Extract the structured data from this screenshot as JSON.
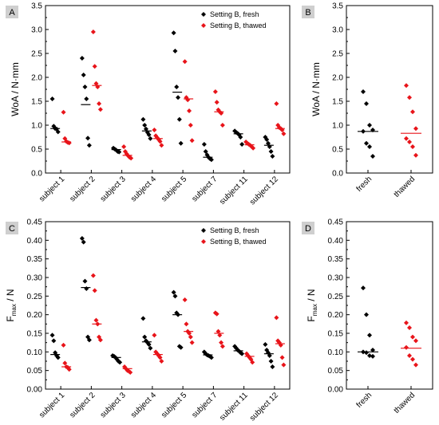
{
  "colors": {
    "fresh": "#000000",
    "thawed": "#e8141a",
    "letter_bg": "#cfcfcf"
  },
  "chart_data": [
    {
      "panel": "A",
      "type": "scatter",
      "ylabel": "WoA / N·mm",
      "ylim": [
        0,
        3.5
      ],
      "yticks": [
        "0.0",
        "0.5",
        "1.0",
        "1.5",
        "2.0",
        "2.5",
        "3.0",
        "3.5"
      ],
      "legend": {
        "placement": "top-right",
        "entries": [
          "Setting B, fresh",
          "Setting B, thawed"
        ]
      },
      "categories": [
        "subject 1",
        "subject 2",
        "subject 3",
        "subject 4",
        "subject 5",
        "subject 7",
        "subject 11",
        "subject 12"
      ],
      "series": [
        {
          "name": "Setting B, fresh",
          "values": [
            [
              1.55,
              0.98,
              0.93,
              0.92,
              0.86
            ],
            [
              2.4,
              2.05,
              1.8,
              1.55,
              0.73,
              0.58
            ],
            [
              0.52,
              0.5,
              0.48,
              0.45,
              0.44
            ],
            [
              1.12,
              1.0,
              0.92,
              0.85,
              0.8,
              0.72
            ],
            [
              2.93,
              2.55,
              1.8,
              1.58,
              1.12,
              0.62
            ],
            [
              0.6,
              0.45,
              0.38,
              0.33,
              0.3,
              0.28
            ],
            [
              0.88,
              0.85,
              0.83,
              0.8,
              0.75,
              0.6
            ],
            [
              0.75,
              0.7,
              0.62,
              0.55,
              0.45,
              0.35
            ]
          ],
          "medians": [
            0.93,
            1.43,
            0.49,
            0.88,
            1.69,
            0.33,
            0.82,
            0.58
          ]
        },
        {
          "name": "Setting B, thawed",
          "values": [
            [
              1.27,
              0.72,
              0.66,
              0.64,
              0.63
            ],
            [
              2.95,
              2.23,
              1.87,
              1.8,
              1.45,
              1.33
            ],
            [
              0.55,
              0.45,
              0.4,
              0.36,
              0.33,
              0.31
            ],
            [
              0.9,
              0.78,
              0.74,
              0.7,
              0.66,
              0.58
            ],
            [
              2.33,
              1.58,
              1.53,
              1.3,
              1.0,
              0.68
            ],
            [
              1.7,
              1.48,
              1.32,
              1.28,
              1.25,
              1.0
            ],
            [
              0.65,
              0.62,
              0.6,
              0.58,
              0.55,
              0.52
            ],
            [
              1.45,
              1.0,
              0.95,
              0.93,
              0.9,
              0.82
            ]
          ],
          "medians": [
            0.65,
            1.83,
            0.37,
            0.72,
            1.55,
            1.28,
            0.59,
            0.93
          ]
        }
      ]
    },
    {
      "panel": "B",
      "type": "scatter",
      "ylabel": "WoA / N·mm",
      "ylim": [
        0,
        3.5
      ],
      "yticks": [
        "0.0",
        "0.5",
        "1.0",
        "1.5",
        "2.0",
        "2.5",
        "3.0",
        "3.5"
      ],
      "categories": [
        "fresh",
        "thawed"
      ],
      "series": [
        {
          "name": "fresh",
          "values": [
            1.7,
            1.45,
            1.0,
            0.9,
            0.87,
            0.62,
            0.55,
            0.35
          ],
          "median": 0.87
        },
        {
          "name": "thawed",
          "values": [
            1.83,
            1.58,
            1.28,
            0.93,
            0.72,
            0.65,
            0.55,
            0.37
          ],
          "median": 0.83
        }
      ]
    },
    {
      "panel": "C",
      "type": "scatter",
      "ylabel": "F",
      "ylabel_sub": "max",
      "ylabel_suffix": " / N",
      "ylim": [
        0,
        0.45
      ],
      "yticks": [
        "0.00",
        "0.05",
        "0.10",
        "0.15",
        "0.20",
        "0.25",
        "0.30",
        "0.35",
        "0.40",
        "0.45"
      ],
      "legend": {
        "placement": "top-right",
        "entries": [
          "Setting B, fresh",
          "Setting B, thawed"
        ]
      },
      "categories": [
        "subject 1",
        "subject 2",
        "subject 3",
        "subject 4",
        "subject 5",
        "subject 7",
        "subject 11",
        "subject 12"
      ],
      "series": [
        {
          "name": "Setting B, fresh",
          "values": [
            [
              0.145,
              0.13,
              0.098,
              0.09,
              0.085
            ],
            [
              0.405,
              0.395,
              0.29,
              0.27,
              0.14,
              0.132
            ],
            [
              0.09,
              0.088,
              0.085,
              0.08,
              0.075,
              0.072
            ],
            [
              0.19,
              0.14,
              0.13,
              0.125,
              0.12,
              0.11
            ],
            [
              0.26,
              0.25,
              0.205,
              0.2,
              0.115,
              0.112
            ],
            [
              0.1,
              0.095,
              0.092,
              0.09,
              0.088,
              0.085
            ],
            [
              0.115,
              0.11,
              0.105,
              0.102,
              0.098,
              0.095
            ],
            [
              0.12,
              0.105,
              0.098,
              0.09,
              0.075,
              0.06
            ]
          ],
          "medians": [
            0.093,
            0.273,
            0.085,
            0.127,
            0.2,
            0.092,
            0.103,
            0.095
          ]
        },
        {
          "name": "Setting B, thawed",
          "values": [
            [
              0.118,
              0.07,
              0.06,
              0.058,
              0.053
            ],
            [
              0.305,
              0.265,
              0.185,
              0.175,
              0.14,
              0.132
            ],
            [
              0.06,
              0.055,
              0.05,
              0.048,
              0.045
            ],
            [
              0.145,
              0.1,
              0.095,
              0.09,
              0.085,
              0.075
            ],
            [
              0.24,
              0.175,
              0.155,
              0.15,
              0.14,
              0.125
            ],
            [
              0.205,
              0.202,
              0.155,
              0.145,
              0.125,
              0.115
            ],
            [
              0.095,
              0.09,
              0.085,
              0.08,
              0.072
            ],
            [
              0.192,
              0.13,
              0.125,
              0.118,
              0.085,
              0.065
            ]
          ],
          "medians": [
            0.06,
            0.175,
            0.055,
            0.093,
            0.155,
            0.15,
            0.088,
            0.122
          ]
        }
      ]
    },
    {
      "panel": "D",
      "type": "scatter",
      "ylabel": "F",
      "ylabel_sub": "max",
      "ylabel_suffix": " / N",
      "ylim": [
        0,
        0.45
      ],
      "yticks": [
        "0.00",
        "0.05",
        "0.10",
        "0.15",
        "0.20",
        "0.25",
        "0.30",
        "0.35",
        "0.40",
        "0.45"
      ],
      "categories": [
        "fresh",
        "thawed"
      ],
      "series": [
        {
          "name": "fresh",
          "values": [
            0.272,
            0.2,
            0.145,
            0.105,
            0.1,
            0.098,
            0.09,
            0.088
          ],
          "median": 0.1
        },
        {
          "name": "thawed",
          "values": [
            0.178,
            0.165,
            0.14,
            0.13,
            0.112,
            0.09,
            0.08,
            0.065
          ],
          "median": 0.11
        }
      ]
    }
  ]
}
